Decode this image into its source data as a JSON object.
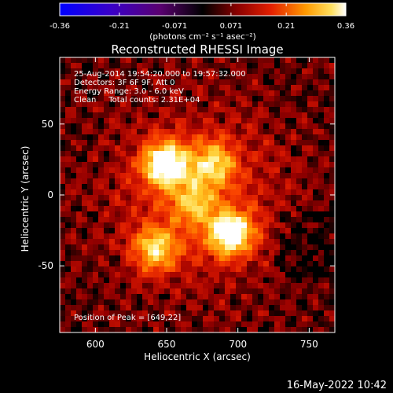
{
  "chart_data": {
    "type": "heatmap",
    "title": "Reconstructed RHESSI Image",
    "xlabel": "Heliocentric X (arcsec)",
    "ylabel": "Heliocentric Y (arcsec)",
    "xlim": [
      575,
      768
    ],
    "ylim": [
      -97,
      97
    ],
    "x_ticks": [
      600,
      650,
      700,
      750
    ],
    "y_ticks": [
      50,
      0,
      -50
    ],
    "colorbar": {
      "range": [
        -0.36,
        0.36
      ],
      "ticks": [
        "-0.36",
        "-0.21",
        "-0.071",
        "0.071",
        "0.21",
        "0.36"
      ],
      "unit": "(photons cm⁻² s⁻¹ asec⁻²)"
    },
    "annotations": [
      "25-Aug-2014 19:54:20.000 to 19:57:32.000",
      "Detectors: 3F 6F 9F, Att 0",
      "Energy Range: 3.0 - 6.0 keV",
      "Clean     Total counts: 2.31E+04"
    ],
    "peak_text": "Position of Peak = [649,22]",
    "sources": [
      {
        "x": 649,
        "y": 22,
        "peak": 0.36
      },
      {
        "x": 695,
        "y": -27,
        "peak": 0.34
      },
      {
        "x": 683,
        "y": 22,
        "peak": 0.22
      },
      {
        "x": 642,
        "y": -38,
        "peak": 0.24
      },
      {
        "x": 668,
        "y": -5,
        "peak": 0.16
      }
    ]
  },
  "footer": {
    "timestamp": "16-May-2022 10:42"
  },
  "colors": {
    "background": "#000000",
    "text": "#ffffff"
  }
}
